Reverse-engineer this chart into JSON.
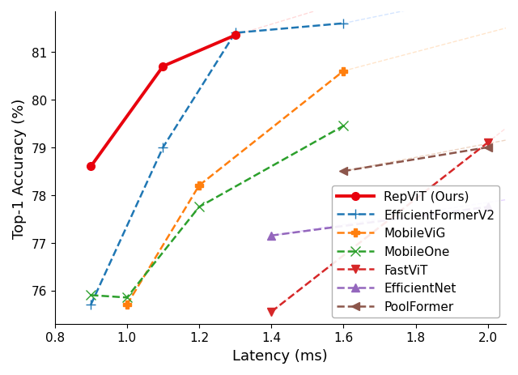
{
  "title": "",
  "xlabel": "Latency (ms)",
  "ylabel": "Top-1 Accuracy (%)",
  "xlim": [
    0.8,
    2.05
  ],
  "ylim": [
    75.3,
    81.85
  ],
  "xticks": [
    0.8,
    1.0,
    1.2,
    1.4,
    1.6,
    1.8,
    2.0
  ],
  "yticks": [
    76,
    77,
    78,
    79,
    80,
    81
  ],
  "series": [
    {
      "label": "RepViT (Ours)",
      "x": [
        0.9,
        1.1,
        1.3
      ],
      "y": [
        78.6,
        80.7,
        81.35
      ],
      "color": "#e8000d",
      "linestyle": "-",
      "linewidth": 2.8,
      "marker": "o",
      "markersize": 7,
      "markerfacecolor": "#e8000d",
      "zorder": 5
    },
    {
      "label": "EfficientFormerV2",
      "x": [
        0.9,
        1.1,
        1.3,
        1.6
      ],
      "y": [
        75.7,
        79.0,
        81.4,
        81.6
      ],
      "color": "#1f77b4",
      "linestyle": "--",
      "linewidth": 1.8,
      "marker": "+",
      "markersize": 9,
      "markerfacecolor": "#1f77b4",
      "zorder": 4
    },
    {
      "label": "MobileViG",
      "x": [
        1.0,
        1.2,
        1.6
      ],
      "y": [
        75.7,
        78.2,
        80.6
      ],
      "color": "#ff7f0e",
      "linestyle": "--",
      "linewidth": 1.8,
      "marker": "P",
      "markersize": 7,
      "markerfacecolor": "#ff7f0e",
      "zorder": 4
    },
    {
      "label": "MobileOne",
      "x": [
        0.9,
        1.0,
        1.2,
        1.6
      ],
      "y": [
        75.9,
        75.85,
        77.75,
        79.45
      ],
      "color": "#2ca02c",
      "linestyle": "--",
      "linewidth": 1.8,
      "marker": "x",
      "markersize": 8,
      "markerfacecolor": "#2ca02c",
      "zorder": 4
    },
    {
      "label": "FastViT",
      "x": [
        1.4,
        2.0
      ],
      "y": [
        75.55,
        79.1
      ],
      "color": "#d62728",
      "linestyle": "--",
      "linewidth": 1.8,
      "marker": "v",
      "markersize": 7,
      "markerfacecolor": "#d62728",
      "zorder": 3
    },
    {
      "label": "EfficientNet",
      "x": [
        1.4,
        2.0
      ],
      "y": [
        77.15,
        77.75
      ],
      "color": "#9467bd",
      "linestyle": "--",
      "linewidth": 1.8,
      "marker": "^",
      "markersize": 7,
      "markerfacecolor": "#9467bd",
      "zorder": 3
    },
    {
      "label": "PoolFormer",
      "x": [
        1.6,
        2.0
      ],
      "y": [
        78.5,
        79.0
      ],
      "color": "#8c564b",
      "linestyle": "--",
      "linewidth": 1.8,
      "marker": "<",
      "markersize": 7,
      "markerfacecolor": "#8c564b",
      "zorder": 3
    }
  ],
  "faint_extensions": [
    {
      "x": [
        1.3,
        1.8
      ],
      "y": [
        81.35,
        82.5
      ],
      "color": "#ffbbbb",
      "linestyle": "--",
      "linewidth": 1.0,
      "alpha": 0.55
    },
    {
      "x": [
        1.6,
        2.05
      ],
      "y": [
        81.6,
        82.3
      ],
      "color": "#aaccff",
      "linestyle": "--",
      "linewidth": 1.0,
      "alpha": 0.5
    },
    {
      "x": [
        1.6,
        2.05
      ],
      "y": [
        80.6,
        81.5
      ],
      "color": "#ffcc99",
      "linestyle": "--",
      "linewidth": 1.0,
      "alpha": 0.5
    },
    {
      "x": [
        1.4,
        2.05
      ],
      "y": [
        77.15,
        77.9
      ],
      "color": "#ccaaff",
      "linestyle": "--",
      "linewidth": 1.0,
      "alpha": 0.5
    },
    {
      "x": [
        1.4,
        2.05
      ],
      "y": [
        75.55,
        79.4
      ],
      "color": "#ffbbbb",
      "linestyle": "--",
      "linewidth": 1.0,
      "alpha": 0.45
    },
    {
      "x": [
        1.6,
        2.05
      ],
      "y": [
        78.5,
        79.15
      ],
      "color": "#ddaa88",
      "linestyle": "--",
      "linewidth": 1.0,
      "alpha": 0.5
    }
  ],
  "legend_loc": "lower right",
  "fontsize_axis_label": 13,
  "fontsize_tick": 11,
  "fontsize_legend": 11
}
